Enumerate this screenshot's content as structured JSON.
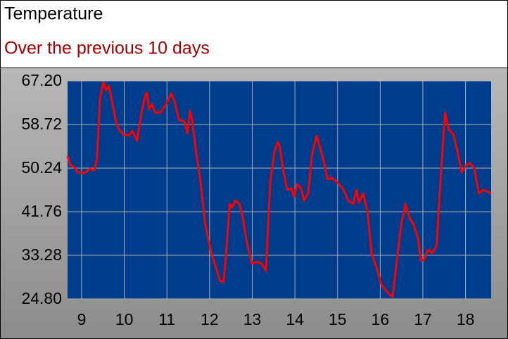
{
  "chart_data": {
    "type": "line",
    "title": "Temperature",
    "subtitle": "Over the previous 10 days",
    "color": "#ff0000",
    "grid": true,
    "xlim": [
      8.67,
      18.6
    ],
    "xticks": [
      9,
      10,
      11,
      12,
      13,
      14,
      15,
      16,
      17,
      18
    ],
    "ylim": [
      24.8,
      67.2
    ],
    "yticks": [
      {
        "value": 24.8,
        "label": "24.80"
      },
      33.28,
      41.76,
      50.24,
      58.72,
      {
        "value": 67.2,
        "label": "67.20"
      }
    ],
    "x": [
      8.67,
      8.74,
      8.84,
      8.9,
      9.07,
      9.2,
      9.3,
      9.36,
      9.43,
      9.51,
      9.58,
      9.64,
      9.73,
      9.81,
      9.89,
      9.99,
      10.12,
      10.19,
      10.3,
      10.39,
      10.49,
      10.53,
      10.58,
      10.65,
      10.72,
      10.85,
      10.98,
      11.1,
      11.18,
      11.28,
      11.41,
      11.48,
      11.54,
      11.59,
      11.67,
      11.79,
      11.9,
      12.04,
      12.17,
      12.25,
      12.33,
      12.4,
      12.47,
      12.53,
      12.6,
      12.7,
      12.78,
      12.86,
      12.99,
      13.11,
      13.22,
      13.32,
      13.42,
      13.52,
      13.6,
      13.65,
      13.72,
      13.82,
      13.92,
      13.98,
      14.05,
      14.15,
      14.21,
      14.31,
      14.4,
      14.51,
      14.59,
      14.68,
      14.76,
      14.87,
      15.01,
      15.14,
      15.25,
      15.37,
      15.44,
      15.5,
      15.6,
      15.7,
      15.8,
      15.91,
      16.03,
      16.16,
      16.29,
      16.41,
      16.49,
      16.59,
      16.69,
      16.79,
      16.89,
      16.95,
      17.02,
      17.12,
      17.22,
      17.32,
      17.42,
      17.52,
      17.61,
      17.71,
      17.81,
      17.91,
      18.01,
      18.11,
      18.21,
      18.31,
      18.41,
      18.5,
      18.6
    ],
    "values": [
      52.56,
      50.78,
      50.37,
      49.42,
      49.28,
      50.1,
      49.83,
      52.15,
      63.78,
      66.93,
      65.42,
      66.24,
      62.41,
      58.99,
      57.62,
      56.67,
      56.67,
      57.49,
      55.57,
      60.36,
      64.46,
      64.87,
      61.73,
      62.69,
      61.04,
      61.04,
      62.69,
      64.74,
      63.1,
      59.68,
      59.27,
      56.94,
      61.32,
      59.68,
      54.2,
      47.36,
      39.16,
      33.68,
      30.26,
      28.21,
      28.21,
      35.05,
      43.26,
      42.58,
      43.94,
      43.26,
      40.52,
      36.42,
      31.63,
      32.04,
      31.63,
      30.26,
      47.36,
      53.52,
      55.3,
      54.2,
      50.1,
      46.0,
      46.27,
      44.63,
      47.09,
      46.27,
      43.94,
      45.31,
      52.84,
      56.53,
      54.2,
      51.47,
      48.05,
      48.32,
      47.36,
      46.0,
      43.94,
      43.26,
      46.0,
      43.53,
      45.31,
      41.89,
      33.68,
      30.95,
      27.53,
      26.16,
      25.2,
      33.68,
      39.16,
      43.26,
      40.52,
      39.16,
      36.42,
      32.32,
      32.32,
      34.37,
      33.68,
      35.05,
      48.73,
      61.04,
      57.62,
      56.94,
      53.52,
      49.42,
      50.78,
      51.19,
      50.1,
      45.31,
      46.0,
      45.72,
      45.31
    ]
  }
}
